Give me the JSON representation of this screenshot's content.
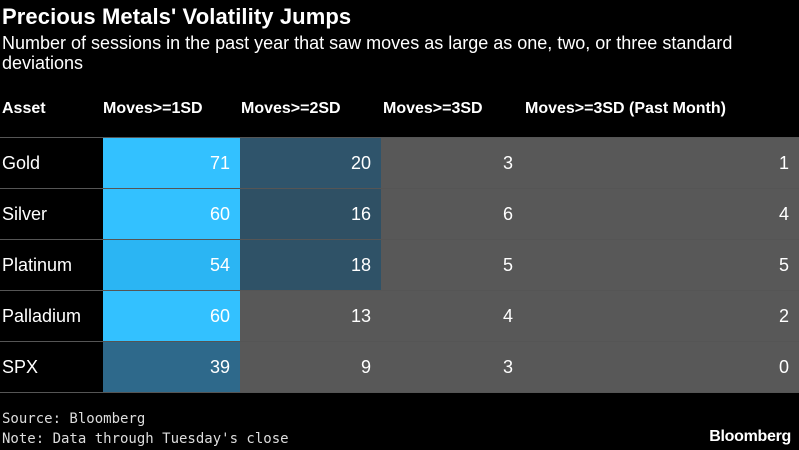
{
  "chart_data": {
    "type": "table",
    "title": "Precious Metals' Volatility Jumps",
    "subtitle": "Number of sessions in the past year that saw moves as large as one, two, or three standard deviations",
    "columns": [
      "Asset",
      "Moves>=1SD",
      "Moves>=2SD",
      "Moves>=3SD",
      "Moves>=3SD (Past Month)"
    ],
    "rows": [
      {
        "asset": "Gold",
        "values": [
          71,
          20,
          3,
          1
        ]
      },
      {
        "asset": "Silver",
        "values": [
          60,
          16,
          6,
          4
        ]
      },
      {
        "asset": "Platinum",
        "values": [
          54,
          18,
          5,
          5
        ]
      },
      {
        "asset": "Palladium",
        "values": [
          60,
          13,
          4,
          2
        ]
      },
      {
        "asset": "SPX",
        "values": [
          39,
          9,
          3,
          0
        ]
      }
    ]
  },
  "footer": {
    "source": "Source: Bloomberg",
    "note": "Note: Data through Tuesday's close",
    "logo": "Bloomberg"
  },
  "colors": {
    "background": "#000000",
    "low": "#585858",
    "mid": "#2f4f62",
    "high": "#33c1ff"
  }
}
